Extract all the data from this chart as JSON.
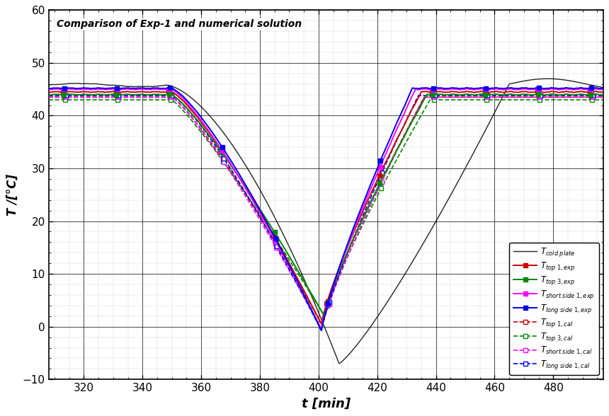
{
  "title": "Comparison of Exp-1 and numerical solution",
  "xlabel": "t [min]",
  "ylabel": "T /[°C]",
  "xlim": [
    308,
    497
  ],
  "ylim": [
    -10,
    60
  ],
  "xticks": [
    320,
    340,
    360,
    380,
    400,
    420,
    440,
    460,
    480
  ],
  "yticks": [
    -10,
    0,
    10,
    20,
    30,
    40,
    50,
    60
  ],
  "cold_plate_color": "#222222",
  "top1_exp_color": "#cc0000",
  "top3_exp_color": "#008800",
  "short_side1_exp_color": "#ff00ff",
  "long_side1_exp_color": "#0000ee",
  "top1_cal_color": "#cc0000",
  "top3_cal_color": "#008800",
  "short_side1_cal_color": "#ff00ff",
  "long_side1_cal_color": "#0000ee"
}
